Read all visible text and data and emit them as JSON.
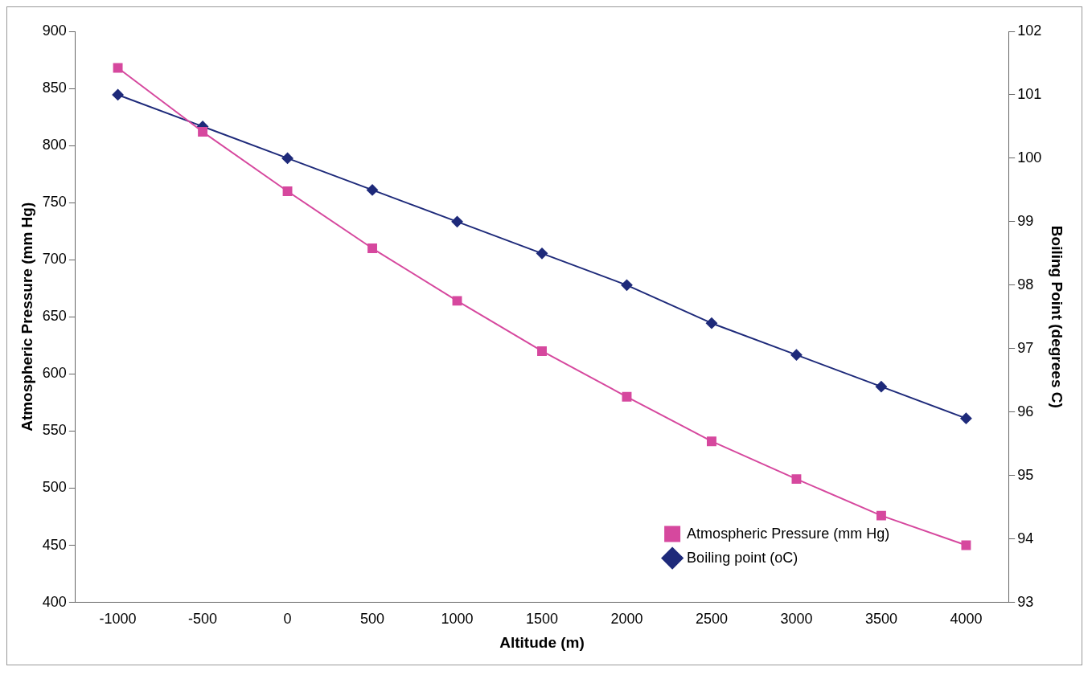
{
  "chart_data": {
    "type": "line",
    "xlabel": "Altitude (m)",
    "ylabel": "Atmospheric Pressure (mm Hg)",
    "y2label": "Boiling Point (degrees C)",
    "categories": [
      "-1000",
      "-500",
      "0",
      "500",
      "1000",
      "1500",
      "2000",
      "2500",
      "3000",
      "3500",
      "4000"
    ],
    "series": [
      {
        "name": "Atmospheric Pressure (mm Hg)",
        "color": "#d6489e",
        "marker": "square",
        "values": [
          868,
          812,
          760,
          710,
          664,
          620,
          580,
          541,
          508,
          476,
          450
        ]
      },
      {
        "name": "Boiling point (oC)",
        "color": "#1e2a7a",
        "marker": "diamond",
        "axis": "y2",
        "values": [
          101.0,
          100.5,
          100.0,
          99.5,
          99.0,
          98.5,
          98.0,
          97.4,
          96.9,
          96.4,
          95.9
        ]
      }
    ],
    "ylim": [
      400,
      900
    ],
    "yticks": [
      400,
      450,
      500,
      550,
      600,
      650,
      700,
      750,
      800,
      850,
      900
    ],
    "y2lim": [
      93,
      102
    ],
    "y2ticks": [
      93,
      94,
      95,
      96,
      97,
      98,
      99,
      100,
      101,
      102
    ],
    "grid": false,
    "legend": "bottom right",
    "line_style": "solid"
  }
}
